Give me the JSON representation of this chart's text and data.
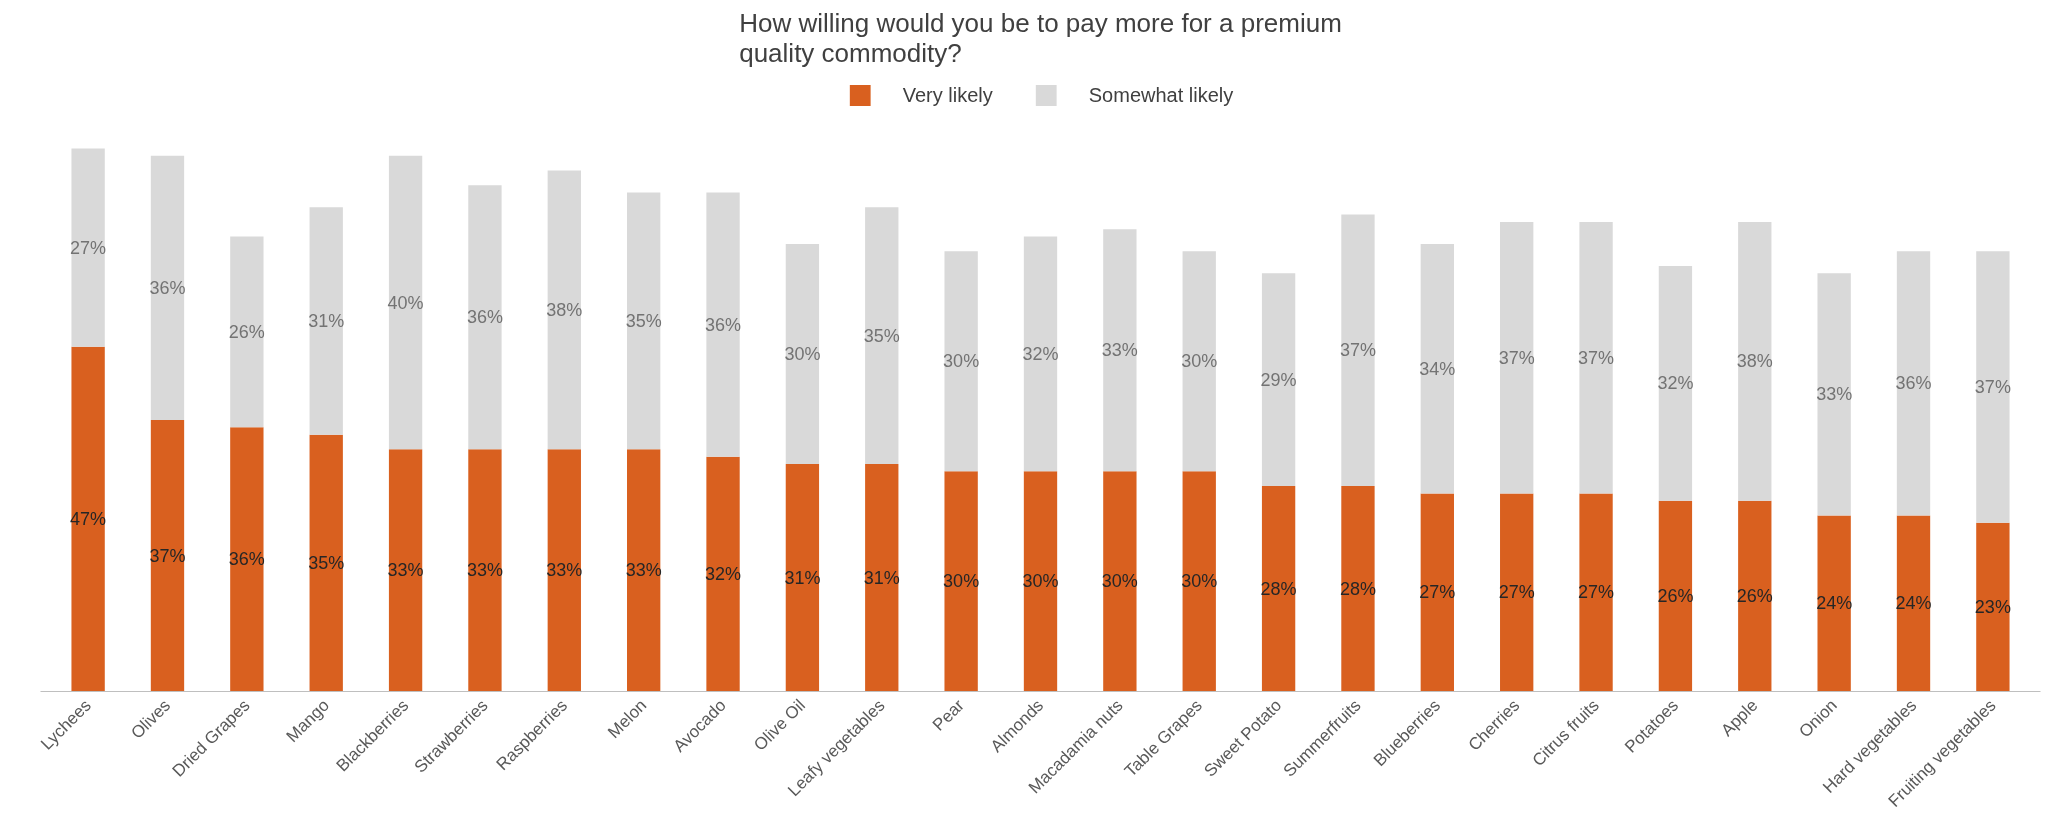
{
  "chart_data": {
    "type": "bar",
    "stacked": true,
    "title": "How willing would you be to pay more for a premium\nquality commodity?",
    "categories": [
      "Lychees",
      "Olives",
      "Dried Grapes",
      "Mango",
      "Blackberries",
      "Strawberries",
      "Raspberries",
      "Melon",
      "Avocado",
      "Olive Oil",
      "Leafy vegetables",
      "Pear",
      "Almonds",
      "Macadamia nuts",
      "Table Grapes",
      "Sweet Potato",
      "Summerfruits",
      "Blueberries",
      "Cherries",
      "Citrus fruits",
      "Potatoes",
      "Apple",
      "Onion",
      "Hard vegetables",
      "Fruiting vegetables"
    ],
    "series": [
      {
        "name": "Very likely",
        "color": "#d9601f",
        "values": [
          47,
          37,
          36,
          35,
          33,
          33,
          33,
          33,
          32,
          31,
          31,
          30,
          30,
          30,
          30,
          28,
          28,
          27,
          27,
          27,
          26,
          26,
          24,
          24,
          23
        ],
        "value_labels": [
          "47%",
          "37%",
          "36%",
          "35%",
          "33%",
          "33%",
          "33%",
          "33%",
          "32%",
          "31%",
          "31%",
          "30%",
          "30%",
          "30%",
          "30%",
          "28%",
          "28%",
          "27%",
          "27%",
          "27%",
          "26%",
          "26%",
          "24%",
          "24%",
          "23%"
        ]
      },
      {
        "name": "Somewhat likely",
        "color": "#d9d9d9",
        "values": [
          27,
          36,
          26,
          31,
          40,
          36,
          38,
          35,
          36,
          30,
          35,
          30,
          32,
          33,
          30,
          29,
          37,
          34,
          37,
          37,
          32,
          38,
          33,
          36,
          37
        ],
        "value_labels": [
          "27%",
          "36%",
          "26%",
          "31%",
          "40%",
          "36%",
          "38%",
          "35%",
          "36%",
          "30%",
          "35%",
          "30%",
          "32%",
          "33%",
          "30%",
          "29%",
          "37%",
          "34%",
          "37%",
          "37%",
          "32%",
          "38%",
          "33%",
          "36%",
          "37%"
        ]
      }
    ],
    "data_labels": true,
    "grid": false,
    "legend": "top"
  }
}
